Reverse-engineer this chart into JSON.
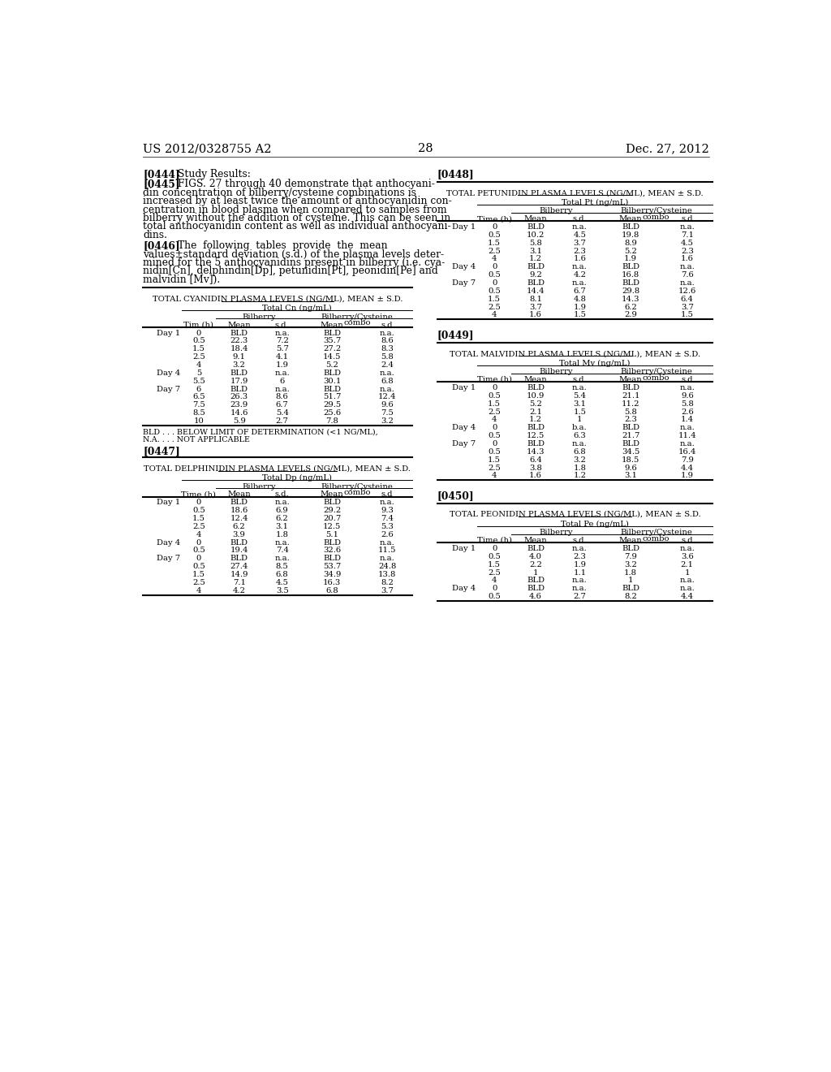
{
  "page_header_left": "US 2012/0328755 A2",
  "page_header_right": "Dec. 27, 2012",
  "page_number": "28",
  "background_color": "#ffffff",
  "text_color": "#000000",
  "table1": {
    "title": "TOTAL CYANIDIN PLASMA LEVELS (NG/ML), MEAN ± S.D.",
    "unit_label": "Total Cn (ng/mL)",
    "col1_header": "Tim (h)",
    "bilberry_header": "Bilberry",
    "combo_header": "Bilberry/Cysteine\ncombo",
    "mean1_header": "Mean",
    "sd1_header": "s.d.",
    "mean2_header": "Mean",
    "sd2_header": "s.d",
    "rows": [
      [
        "Day 1",
        "0",
        "BLD",
        "n.a.",
        "BLD",
        "n.a."
      ],
      [
        "",
        "0.5",
        "22.3",
        "7.2",
        "35.7",
        "8.6"
      ],
      [
        "",
        "1.5",
        "18.4",
        "5.7",
        "27.2",
        "8.3"
      ],
      [
        "",
        "2.5",
        "9.1",
        "4.1",
        "14.5",
        "5.8"
      ],
      [
        "",
        "4",
        "3.2",
        "1.9",
        "5.2",
        "2.4"
      ],
      [
        "Day 4",
        "5",
        "BLD",
        "n.a.",
        "BLD",
        "n.a."
      ],
      [
        "",
        "5.5",
        "17.9",
        "6",
        "30.1",
        "6.8"
      ],
      [
        "Day 7",
        "6",
        "BLD",
        "n.a.",
        "BLD",
        "n.a."
      ],
      [
        "",
        "6.5",
        "26.3",
        "8.6",
        "51.7",
        "12.4"
      ],
      [
        "",
        "7.5",
        "23.9",
        "6.7",
        "29.5",
        "9.6"
      ],
      [
        "",
        "8.5",
        "14.6",
        "5.4",
        "25.6",
        "7.5"
      ],
      [
        "",
        "10",
        "5.9",
        "2.7",
        "7.8",
        "3.2"
      ]
    ],
    "footnote1": "BLD . . . BELOW LIMIT OF DETERMINATION (<1 NG/ML),",
    "footnote2": "N.A. . . . NOT APPLICABLE"
  },
  "table2": {
    "title": "TOTAL DELPHINIDIN PLASMA LEVELS (NG/ML), MEAN ± S.D.",
    "unit_label": "Total Dp (ng/mL)",
    "col1_header": "Time (h)",
    "bilberry_header": "Bilberry",
    "combo_header": "Bilberry/Cysteine\ncombo",
    "mean1_header": "Mean",
    "sd1_header": "s.d.",
    "mean2_header": "Mean",
    "sd2_header": "s.d",
    "rows": [
      [
        "Day 1",
        "0",
        "BLD",
        "n.a.",
        "BLD",
        "n.a."
      ],
      [
        "",
        "0.5",
        "18.6",
        "6.9",
        "29.2",
        "9.3"
      ],
      [
        "",
        "1.5",
        "12.4",
        "6.2",
        "20.7",
        "7.4"
      ],
      [
        "",
        "2.5",
        "6.2",
        "3.1",
        "12.5",
        "5.3"
      ],
      [
        "",
        "4",
        "3.9",
        "1.8",
        "5.1",
        "2.6"
      ],
      [
        "Day 4",
        "0",
        "BLD",
        "n.a.",
        "BLD",
        "n.a."
      ],
      [
        "",
        "0.5",
        "19.4",
        "7.4",
        "32.6",
        "11.5"
      ],
      [
        "Day 7",
        "0",
        "BLD",
        "n.a.",
        "BLD",
        "n.a."
      ],
      [
        "",
        "0.5",
        "27.4",
        "8.5",
        "53.7",
        "24.8"
      ],
      [
        "",
        "1.5",
        "14.9",
        "6.8",
        "34.9",
        "13.8"
      ],
      [
        "",
        "2.5",
        "7.1",
        "4.5",
        "16.3",
        "8.2"
      ],
      [
        "",
        "4",
        "4.2",
        "3.5",
        "6.8",
        "3.7"
      ]
    ]
  },
  "table3": {
    "title": "TOTAL PETUNIDIN PLASMA LEVELS (NG/ML), MEAN ± S.D.",
    "unit_label": "Total Pt (ng/mL)",
    "col1_header": "Time (h)",
    "bilberry_header": "Bilberry",
    "combo_header": "Bilberry/Cysteine\ncombo",
    "mean1_header": "Mean",
    "sd1_header": "s.d.",
    "mean2_header": "Mean",
    "sd2_header": "s.d",
    "rows": [
      [
        "Day 1",
        "0",
        "BLD",
        "n.a.",
        "BLD",
        "n.a."
      ],
      [
        "",
        "0.5",
        "10.2",
        "4.5",
        "19.8",
        "7.1"
      ],
      [
        "",
        "1.5",
        "5.8",
        "3.7",
        "8.9",
        "4.5"
      ],
      [
        "",
        "2.5",
        "3.1",
        "2.3",
        "5.2",
        "2.3"
      ],
      [
        "",
        "4",
        "1.2",
        "1.6",
        "1.9",
        "1.6"
      ],
      [
        "Day 4",
        "0",
        "BLD",
        "n.a.",
        "BLD",
        "n.a."
      ],
      [
        "",
        "0.5",
        "9.2",
        "4.2",
        "16.8",
        "7.6"
      ],
      [
        "Day 7",
        "0",
        "BLD",
        "n.a.",
        "BLD",
        "n.a."
      ],
      [
        "",
        "0.5",
        "14.4",
        "6.7",
        "29.8",
        "12.6"
      ],
      [
        "",
        "1.5",
        "8.1",
        "4.8",
        "14.3",
        "6.4"
      ],
      [
        "",
        "2.5",
        "3.7",
        "1.9",
        "6.2",
        "3.7"
      ],
      [
        "",
        "4",
        "1.6",
        "1.5",
        "2.9",
        "1.5"
      ]
    ]
  },
  "table4": {
    "title": "TOTAL MALVIDIN PLASMA LEVELS (NG/ML), MEAN ± S.D.",
    "unit_label": "Total Mv (ng/mL)",
    "col1_header": "Time (h)",
    "bilberry_header": "Bilberry",
    "combo_header": "Bilberry/Cysteine\ncombo",
    "mean1_header": "Mean",
    "sd1_header": "s.d.",
    "mean2_header": "Mean",
    "sd2_header": "s.d",
    "rows": [
      [
        "Day 1",
        "0",
        "BLD",
        "n.a.",
        "BLD",
        "n.a."
      ],
      [
        "",
        "0.5",
        "10.9",
        "5.4",
        "21.1",
        "9.6"
      ],
      [
        "",
        "1.5",
        "5.2",
        "3.1",
        "11.2",
        "5.8"
      ],
      [
        "",
        "2.5",
        "2.1",
        "1.5",
        "5.8",
        "2.6"
      ],
      [
        "",
        "4",
        "1.2",
        "1",
        "2.3",
        "1.4"
      ],
      [
        "Day 4",
        "0",
        "BLD",
        "b.a.",
        "BLD",
        "n.a."
      ],
      [
        "",
        "0.5",
        "12.5",
        "6.3",
        "21.7",
        "11.4"
      ],
      [
        "Day 7",
        "0",
        "BLD",
        "n.a.",
        "BLD",
        "n.a."
      ],
      [
        "",
        "0.5",
        "14.3",
        "6.8",
        "34.5",
        "16.4"
      ],
      [
        "",
        "1.5",
        "6.4",
        "3.2",
        "18.5",
        "7.9"
      ],
      [
        "",
        "2.5",
        "3.8",
        "1.8",
        "9.6",
        "4.4"
      ],
      [
        "",
        "4",
        "1.6",
        "1.2",
        "3.1",
        "1.9"
      ]
    ]
  },
  "table5": {
    "title": "TOTAL PEONIDIN PLASMA LEVELS (NG/ML), MEAN ± S.D.",
    "unit_label": "Total Pe (ng/mL)",
    "col1_header": "Time (h)",
    "bilberry_header": "Bilberry",
    "combo_header": "Bilberry/Cysteine\ncombo",
    "mean1_header": "Mean",
    "sd1_header": "s.d.",
    "mean2_header": "Mean",
    "sd2_header": "s.d",
    "rows": [
      [
        "Day 1",
        "0",
        "BLD",
        "n.a.",
        "BLD",
        "n.a."
      ],
      [
        "",
        "0.5",
        "4.0",
        "2.3",
        "7.9",
        "3.6"
      ],
      [
        "",
        "1.5",
        "2.2",
        "1.9",
        "3.2",
        "2.1"
      ],
      [
        "",
        "2.5",
        "1",
        "1.1",
        "1.8",
        "1"
      ],
      [
        "",
        "4",
        "BLD",
        "n.a.",
        "1",
        "n.a."
      ],
      [
        "Day 4",
        "0",
        "BLD",
        "n.a.",
        "BLD",
        "n.a."
      ],
      [
        "",
        "0.5",
        "4.6",
        "2.7",
        "8.2",
        "4.4"
      ]
    ]
  }
}
